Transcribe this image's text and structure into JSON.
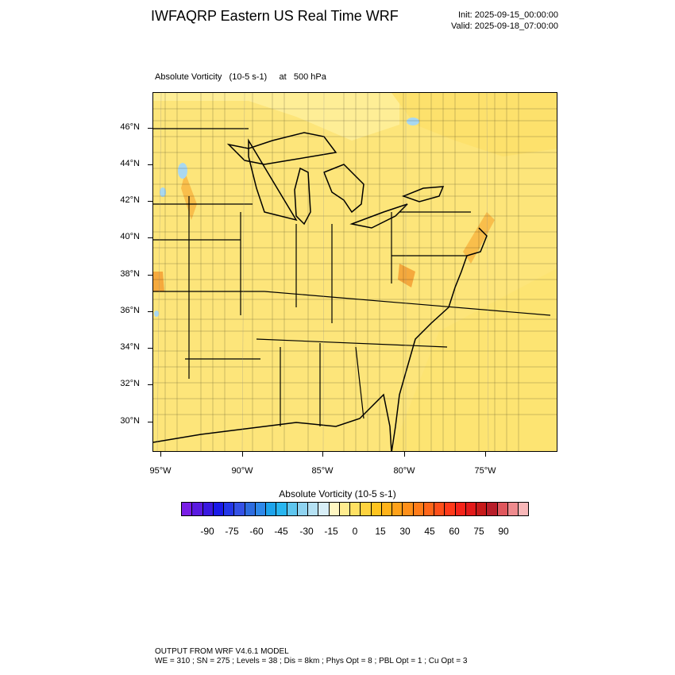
{
  "header": {
    "title": "IWFAQRP Eastern US Real Time WRF",
    "init": "Init: 2025-09-15_00:00:00",
    "valid": "Valid: 2025-09-18_07:00:00"
  },
  "field_label": "Absolute Vorticity   (10-5 s-1)     at   500 hPa",
  "map": {
    "lat_labels": [
      "46°N",
      "44°N",
      "42°N",
      "40°N",
      "38°N",
      "36°N",
      "34°N",
      "32°N",
      "30°N"
    ],
    "lon_labels": [
      "95°W",
      "90°W",
      "85°W",
      "80°W",
      "75°W"
    ],
    "colors": {
      "background": "#fde57a",
      "land_light": "#fff3a8",
      "land_mid": "#fde06a",
      "land_dark": "#f7b440",
      "water_blue": "#a9d8f0",
      "boundary": "#000000"
    }
  },
  "colorbar": {
    "title": "Absolute Vorticity  (10-5 s-1)",
    "labels": [
      "-90",
      "-75",
      "-60",
      "-45",
      "-30",
      "-15",
      "0",
      "15",
      "30",
      "45",
      "60",
      "75",
      "90"
    ],
    "colors": [
      "#7a1fe6",
      "#5a1be0",
      "#3a19e0",
      "#1a1ae8",
      "#2437e8",
      "#3552e6",
      "#2e6de0",
      "#2f89ea",
      "#1ea4ec",
      "#29b6f0",
      "#5fc6ef",
      "#8fd3f0",
      "#b5e1f3",
      "#d8eef7",
      "#fff6c2",
      "#ffec8f",
      "#ffe163",
      "#ffd33f",
      "#ffc41f",
      "#ffb31a",
      "#ffa21a",
      "#ff901a",
      "#ff7c1a",
      "#ff661a",
      "#ff4f1a",
      "#ff3a1a",
      "#f5241a",
      "#e31a1a",
      "#c71a1a",
      "#b81e2a",
      "#e0575d",
      "#ef8b8e",
      "#f8b7b8"
    ]
  },
  "footer": {
    "line1": "OUTPUT FROM WRF V4.6.1 MODEL",
    "line2": "WE = 310 ; SN = 275 ; Levels = 38 ; Dis = 8km ; Phys Opt = 8 ; PBL Opt = 1 ; Cu Opt = 3"
  }
}
